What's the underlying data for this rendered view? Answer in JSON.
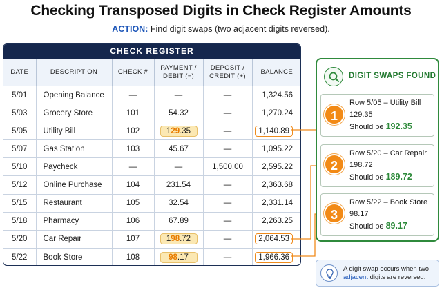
{
  "title": "Checking Transposed Digits in Check Register Amounts",
  "subtitle": {
    "action_label": "ACTION:",
    "action_text": "Find digit swaps (two adjacent digits reversed)."
  },
  "register": {
    "title": "CHECK REGISTER",
    "headers": {
      "date": "DATE",
      "description": "DESCRIPTION",
      "check": "CHECK #",
      "payment_1": "PAYMENT /",
      "payment_2": "DEBIT (−)",
      "deposit_1": "DEPOSIT /",
      "deposit_2": "CREDIT (+)",
      "balance": "BALANCE"
    },
    "rows": [
      {
        "date": "5/01",
        "desc": "Opening Balance",
        "check": "—",
        "pay": "—",
        "pay_a": "",
        "pay_b": "",
        "pay_c": "",
        "dep": "—",
        "bal": "1,324.56"
      },
      {
        "date": "5/03",
        "desc": "Grocery Store",
        "check": "101",
        "pay": "54.32",
        "pay_a": "",
        "pay_b": "",
        "pay_c": "",
        "dep": "—",
        "bal": "1,270.24"
      },
      {
        "date": "5/05",
        "desc": "Utility Bill",
        "check": "102",
        "pay": "",
        "pay_a": "1",
        "pay_b": "29",
        "pay_c": ".35",
        "dep": "—",
        "bal": "1,140.89"
      },
      {
        "date": "5/07",
        "desc": "Gas Station",
        "check": "103",
        "pay": "45.67",
        "pay_a": "",
        "pay_b": "",
        "pay_c": "",
        "dep": "—",
        "bal": "1,095.22"
      },
      {
        "date": "5/10",
        "desc": "Paycheck",
        "check": "—",
        "pay": "—",
        "pay_a": "",
        "pay_b": "",
        "pay_c": "",
        "dep": "1,500.00",
        "bal": "2,595.22"
      },
      {
        "date": "5/12",
        "desc": "Online Purchase",
        "check": "104",
        "pay": "231.54",
        "pay_a": "",
        "pay_b": "",
        "pay_c": "",
        "dep": "—",
        "bal": "2,363.68"
      },
      {
        "date": "5/15",
        "desc": "Restaurant",
        "check": "105",
        "pay": "32.54",
        "pay_a": "",
        "pay_b": "",
        "pay_c": "",
        "dep": "—",
        "bal": "2,331.14"
      },
      {
        "date": "5/18",
        "desc": "Pharmacy",
        "check": "106",
        "pay": "67.89",
        "pay_a": "",
        "pay_b": "",
        "pay_c": "",
        "dep": "—",
        "bal": "2,263.25"
      },
      {
        "date": "5/20",
        "desc": "Car Repair",
        "check": "107",
        "pay": "",
        "pay_a": "1",
        "pay_b": "98",
        "pay_c": ".72",
        "dep": "—",
        "bal": "2,064.53"
      },
      {
        "date": "5/22",
        "desc": "Book Store",
        "check": "108",
        "pay": "",
        "pay_a": "",
        "pay_b": "98",
        "pay_c": ".17",
        "dep": "—",
        "bal": "1,966.36"
      }
    ]
  },
  "found": {
    "title": "DIGIT SWAPS FOUND",
    "items": [
      {
        "num": "1",
        "line1": "Row 5/05 – Utility Bill",
        "line2": "129.35",
        "should": "Should be",
        "fix": "192.35"
      },
      {
        "num": "2",
        "line1": "Row 5/20 – Car Repair",
        "line2": "198.72",
        "should": "Should be",
        "fix": "189.72"
      },
      {
        "num": "3",
        "line1": "Row 5/22 – Book Store",
        "line2": "98.17",
        "should": "Should be",
        "fix": "89.17"
      }
    ]
  },
  "note": {
    "text_a": "A digit swap occurs when two",
    "adjacent": "adjacent",
    "text_b": "digits are reversed."
  },
  "colors": {
    "navy": "#15274d",
    "green": "#2f8a3c",
    "orange": "#f28a16",
    "blue": "#1d56b8",
    "highlight": "#fbe8b3"
  },
  "icons": [
    "search-icon",
    "lightbulb-icon"
  ]
}
